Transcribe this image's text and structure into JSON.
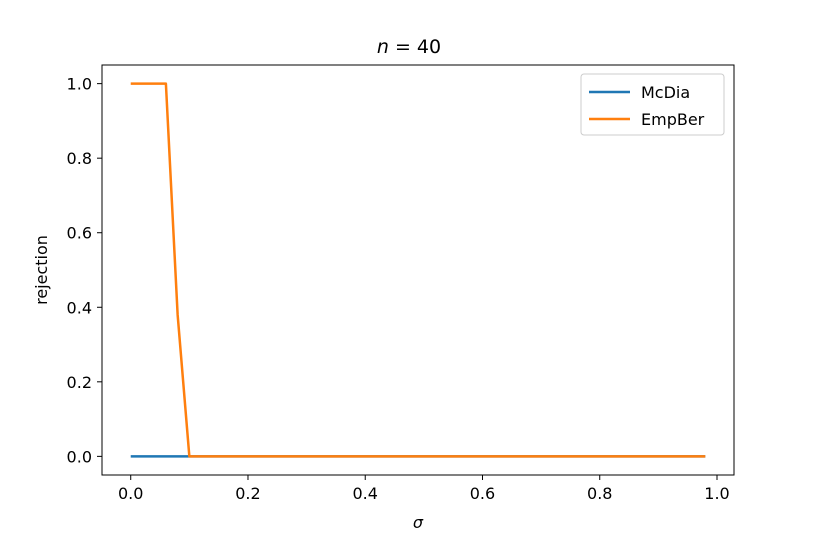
{
  "chart_data": {
    "type": "line",
    "title": {
      "italic": "n",
      "rest": " = 40"
    },
    "xlabel": "σ",
    "ylabel": "rejection",
    "xlim": [
      -0.049,
      1.029
    ],
    "ylim": [
      -0.05,
      1.05
    ],
    "xticks": [
      0.0,
      0.2,
      0.4,
      0.6,
      0.8,
      1.0
    ],
    "xtick_labels": [
      "0.0",
      "0.2",
      "0.4",
      "0.6",
      "0.8",
      "1.0"
    ],
    "yticks": [
      0.0,
      0.2,
      0.4,
      0.6,
      0.8,
      1.0
    ],
    "ytick_labels": [
      "0.0",
      "0.2",
      "0.4",
      "0.6",
      "0.8",
      "1.0"
    ],
    "grid": false,
    "legend_position": "top-right",
    "series": [
      {
        "name": "McDia",
        "color": "#1f77b4",
        "x": [
          0.0,
          0.98
        ],
        "y": [
          0.0,
          0.0
        ]
      },
      {
        "name": "EmpBer",
        "color": "#ff7f0e",
        "x": [
          0.0,
          0.06,
          0.08,
          0.1,
          0.98
        ],
        "y": [
          1.0,
          1.0,
          0.38,
          0.0,
          0.0
        ]
      }
    ]
  }
}
